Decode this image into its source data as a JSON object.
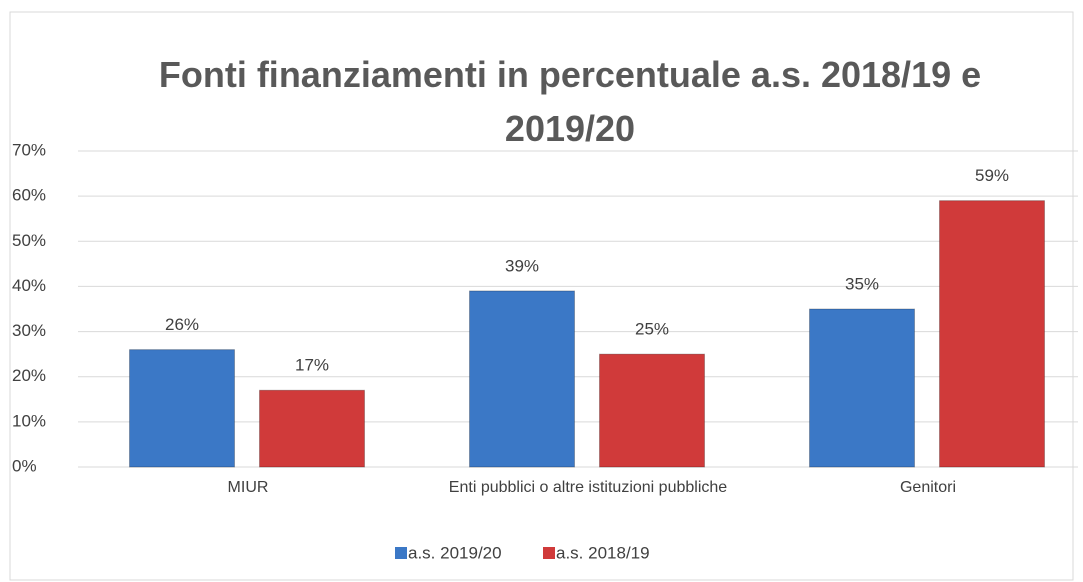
{
  "chart_data": {
    "type": "bar",
    "title": "Fonti finanziamenti in percentuale a.s. 2018/19 e 2019/20",
    "categories": [
      "MIUR",
      "Enti pubblici o altre istituzioni pubbliche",
      "Genitori"
    ],
    "series": [
      {
        "name": "a.s. 2019/20",
        "color": "#3b78c6",
        "values": [
          26,
          39,
          35
        ],
        "value_labels": [
          "26%",
          "39%",
          "35%"
        ]
      },
      {
        "name": "a.s. 2018/19",
        "color": "#d03a3a",
        "values": [
          17,
          25,
          59
        ],
        "value_labels": [
          "17%",
          "25%",
          "59%"
        ]
      }
    ],
    "ylim": [
      0,
      70
    ],
    "yticks": [
      {
        "value": 0,
        "label": "0%"
      },
      {
        "value": 10,
        "label": "10%"
      },
      {
        "value": 20,
        "label": "20%"
      },
      {
        "value": 30,
        "label": "30%"
      },
      {
        "value": 40,
        "label": "40%"
      },
      {
        "value": 50,
        "label": "50%"
      },
      {
        "value": 60,
        "label": "60%"
      },
      {
        "value": 70,
        "label": "70%"
      }
    ],
    "grid": true,
    "legend": "bottom"
  }
}
